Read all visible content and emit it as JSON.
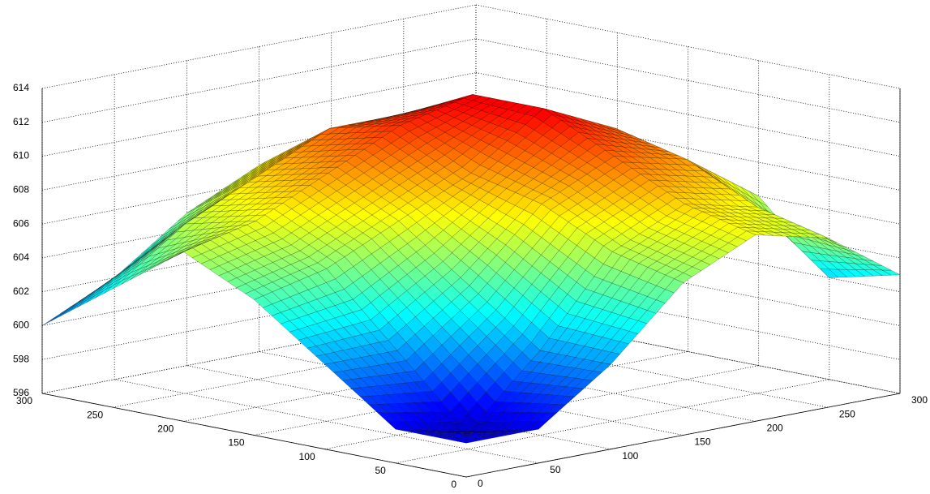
{
  "chart_data": {
    "type": "surface",
    "x": [
      0,
      50,
      100,
      150,
      200,
      250,
      300
    ],
    "y": [
      0,
      50,
      100,
      150,
      200,
      250,
      300
    ],
    "z": [
      [
        598,
        598,
        601,
        605,
        607,
        606,
        603
      ],
      [
        598,
        597,
        601,
        606,
        608,
        607,
        602
      ],
      [
        601,
        601,
        604,
        608,
        610,
        609,
        606
      ],
      [
        604,
        605,
        607,
        609,
        612,
        610,
        607
      ],
      [
        606,
        607,
        609,
        611,
        612,
        609,
        606
      ],
      [
        603,
        606,
        608,
        610,
        610,
        607,
        604
      ],
      [
        600,
        602,
        605,
        607,
        607,
        605,
        602
      ]
    ],
    "xlim": [
      0,
      300
    ],
    "ylim": [
      0,
      300
    ],
    "zlim": [
      596,
      614
    ],
    "xticks": [
      0,
      50,
      100,
      150,
      200,
      250,
      300
    ],
    "yticks": [
      0,
      50,
      100,
      150,
      200,
      250,
      300
    ],
    "zticks": [
      596,
      598,
      600,
      602,
      604,
      606,
      608,
      610,
      612,
      614
    ],
    "colormap": "jet",
    "grid": true
  }
}
